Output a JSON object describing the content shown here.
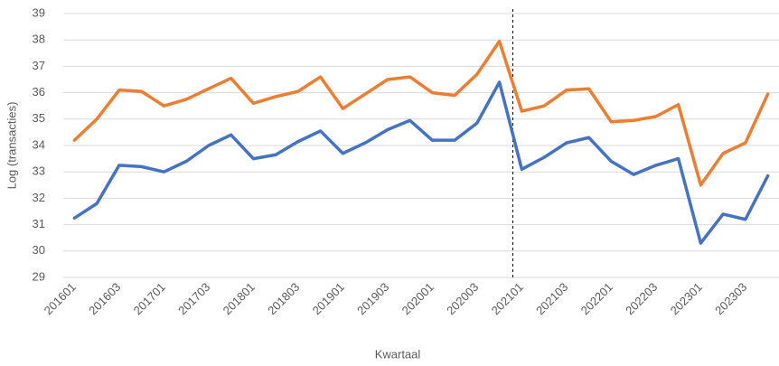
{
  "chart_data": {
    "type": "line",
    "x_label": "Kwartaal",
    "y_label": "Log (transacties)",
    "categories": [
      "201601",
      null,
      "201603",
      null,
      "201701",
      null,
      "201703",
      null,
      "201801",
      null,
      "201803",
      null,
      "201901",
      null,
      "201903",
      null,
      "202001",
      null,
      "202003",
      null,
      "202101",
      null,
      "202103",
      null,
      "202201",
      null,
      "202203",
      null,
      "202301",
      null,
      "202303",
      null
    ],
    "series": [
      {
        "color": "#4472c4",
        "values": [
          31.25,
          31.8,
          33.25,
          33.2,
          33.0,
          33.4,
          34.0,
          34.4,
          33.5,
          33.65,
          34.15,
          34.55,
          33.7,
          34.1,
          34.6,
          34.95,
          34.2,
          34.2,
          34.85,
          36.4,
          33.1,
          33.55,
          34.1,
          34.3,
          33.4,
          32.9,
          33.25,
          33.5,
          30.3,
          31.4,
          31.2,
          32.85
        ]
      },
      {
        "color": "#ed7d31",
        "values": [
          34.2,
          35.0,
          36.1,
          36.05,
          35.5,
          35.75,
          36.15,
          36.55,
          35.6,
          35.85,
          36.05,
          36.6,
          35.4,
          35.95,
          36.5,
          36.6,
          36.0,
          35.9,
          36.7,
          37.95,
          35.3,
          35.5,
          36.1,
          36.15,
          34.9,
          34.95,
          35.1,
          35.55,
          32.5,
          33.7,
          34.1,
          35.95
        ]
      }
    ],
    "ylim": [
      29,
      39
    ],
    "yticks": [
      29,
      30,
      31,
      32,
      33,
      34,
      35,
      36,
      37,
      38,
      39
    ],
    "grid": true
  }
}
